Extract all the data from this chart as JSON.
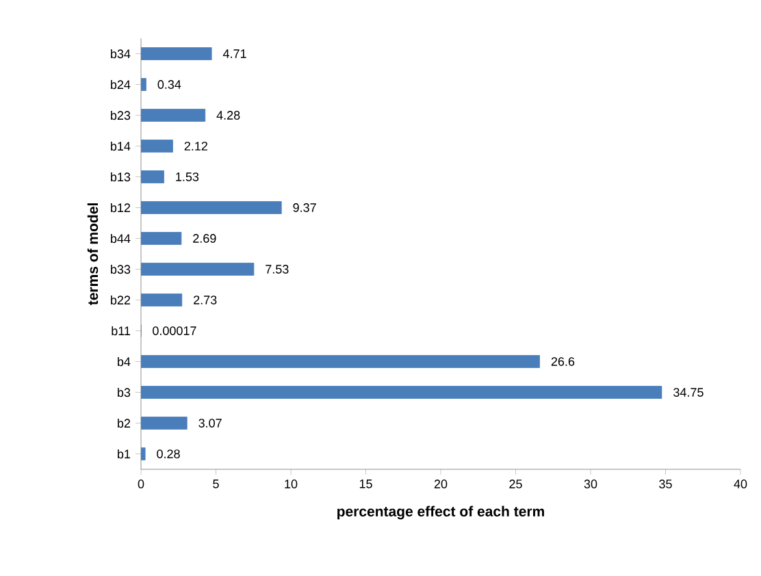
{
  "chart_data": {
    "type": "bar",
    "orientation": "horizontal",
    "xlabel": "percentage effect of each term",
    "ylabel": "terms of model",
    "categories": [
      "b34",
      "b24",
      "b23",
      "b14",
      "b13",
      "b12",
      "b44",
      "b33",
      "b22",
      "b11",
      "b4",
      "b3",
      "b2",
      "b1"
    ],
    "values": [
      4.71,
      0.34,
      4.28,
      2.12,
      1.53,
      9.37,
      2.69,
      7.53,
      2.73,
      0.00017,
      26.6,
      34.75,
      3.07,
      0.28
    ],
    "value_labels": [
      "4.71",
      "0.34",
      "4.28",
      "2.12",
      "1.53",
      "9.37",
      "2.69",
      "7.53",
      "2.73",
      "0.00017",
      "26.6",
      "34.75",
      "3.07",
      "0.28"
    ],
    "color": "#4a7ebb",
    "xlim": [
      0,
      40
    ],
    "xticks": [
      0,
      5,
      10,
      15,
      20,
      25,
      30,
      35,
      40
    ]
  }
}
